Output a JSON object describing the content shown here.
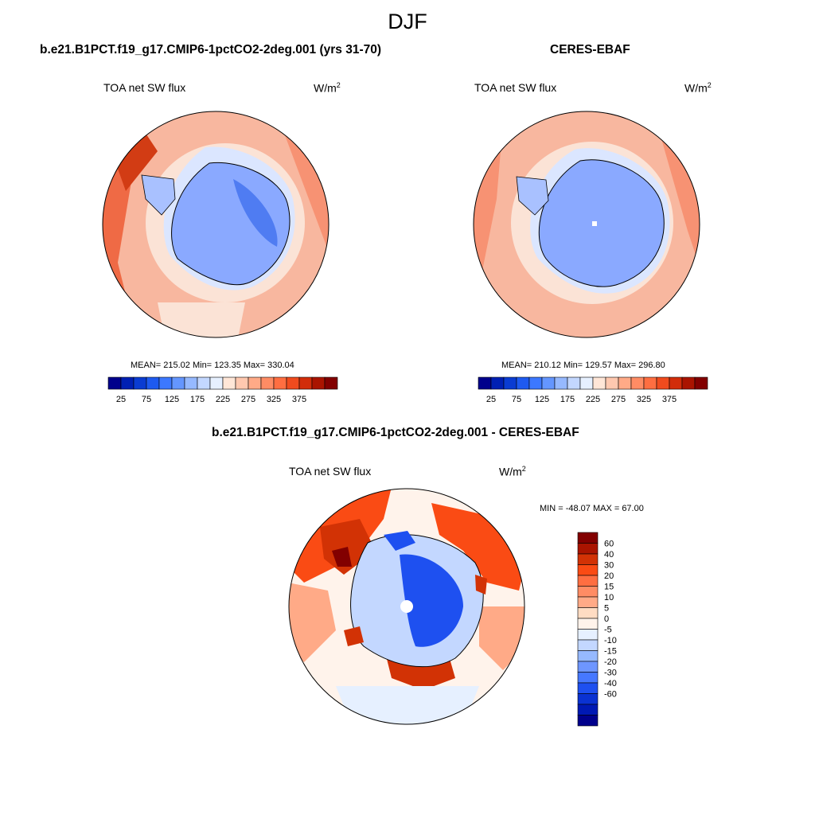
{
  "page_title": "DJF",
  "panels": [
    {
      "title": "b.e21.B1PCT.f19_g17.CMIP6-1pctCO2-2deg.001 (yrs 31-70)",
      "variable": "TOA net SW flux",
      "units_base": "W/m",
      "units_exp": "2",
      "stats": "MEAN= 215.02  Min= 123.35  Max= 330.04"
    },
    {
      "title": "CERES-EBAF",
      "variable": "TOA net SW flux",
      "units_base": "W/m",
      "units_exp": "2",
      "stats": "MEAN= 210.12  Min= 129.57  Max= 296.80"
    },
    {
      "title": "b.e21.B1PCT.f19_g17.CMIP6-1pctCO2-2deg.001 - CERES-EBAF",
      "variable": "TOA net SW flux",
      "units_base": "W/m",
      "units_exp": "2",
      "stats": "MIN = -48.07 MAX =  67.00"
    }
  ],
  "abs_colorbar": {
    "colors": [
      "#00008c",
      "#0020b4",
      "#0a3cd2",
      "#1e5af0",
      "#3c78ff",
      "#6496ff",
      "#96b9ff",
      "#c3d7ff",
      "#e6f0ff",
      "#ffe6d7",
      "#ffc8af",
      "#ffaa87",
      "#ff8c64",
      "#ff6e41",
      "#f04b1e",
      "#d22d0a",
      "#aa1400",
      "#820000"
    ],
    "tick_labels": [
      "25",
      "75",
      "125",
      "175",
      "225",
      "275",
      "325",
      "375"
    ]
  },
  "diff_colorbar": {
    "colors_top_to_bottom": [
      "#820000",
      "#aa1400",
      "#d23205",
      "#fa4b14",
      "#ff6e41",
      "#ff8c64",
      "#ffaa87",
      "#ffdcc3",
      "#fff3eb",
      "#e6f0ff",
      "#c3d7ff",
      "#96b9ff",
      "#6e96ff",
      "#4678ff",
      "#1e50f0",
      "#0a32d2",
      "#0019b4",
      "#00008c"
    ],
    "tick_labels": [
      "60",
      "40",
      "30",
      "20",
      "15",
      "10",
      "5",
      "0",
      "-5",
      "-10",
      "-15",
      "-20",
      "-30",
      "-40",
      "-60"
    ]
  },
  "palette": {
    "ice_blue": "#8aa9ff",
    "ice_light": "#a9c1ff",
    "ice_dark": "#4f7cf2",
    "pale_pink": "#fbe3d6",
    "salmon": "#f8b79f",
    "orange": "#f79273",
    "red": "#ef6a45",
    "deep_red": "#d23c14",
    "coastline": "#000000"
  }
}
